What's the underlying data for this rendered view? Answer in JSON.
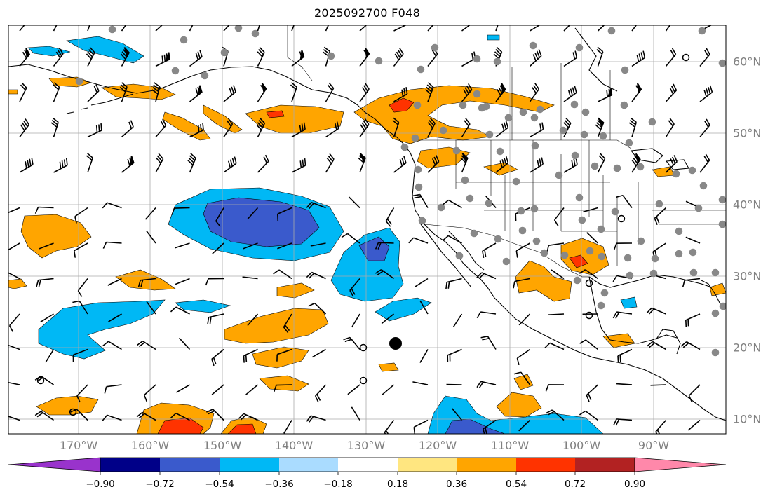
{
  "title": "2025092700 F048",
  "map": {
    "projection": "plate-carree",
    "lon_range": [
      -180,
      -80
    ],
    "lat_range": [
      8,
      65
    ],
    "lon_labels": [
      "170°W",
      "160°W",
      "150°W",
      "140°W",
      "130°W",
      "120°W",
      "110°W",
      "100°W",
      "90°W"
    ],
    "lat_labels": [
      "60°N",
      "50°N",
      "40°N",
      "30°N",
      "20°N",
      "10°N"
    ],
    "grid": true,
    "grid_color": "#aaaaaa",
    "coastline_color": "#000000",
    "station_color": "#888888",
    "barb_color": "#000000",
    "center_marker": "typhoon-center-icon"
  },
  "colorbar": {
    "tick_labels": [
      "−0.90",
      "−0.72",
      "−0.54",
      "−0.36",
      "−0.18",
      "0.18",
      "0.36",
      "0.54",
      "0.72",
      "0.90"
    ],
    "colors": [
      "#9933cc",
      "#000088",
      "#3a5acc",
      "#00b8f5",
      "#aadcff",
      "#ffffff",
      "#ffe680",
      "#ffa500",
      "#ff3300",
      "#b22222",
      "#ff88aa"
    ],
    "extend": "both"
  }
}
